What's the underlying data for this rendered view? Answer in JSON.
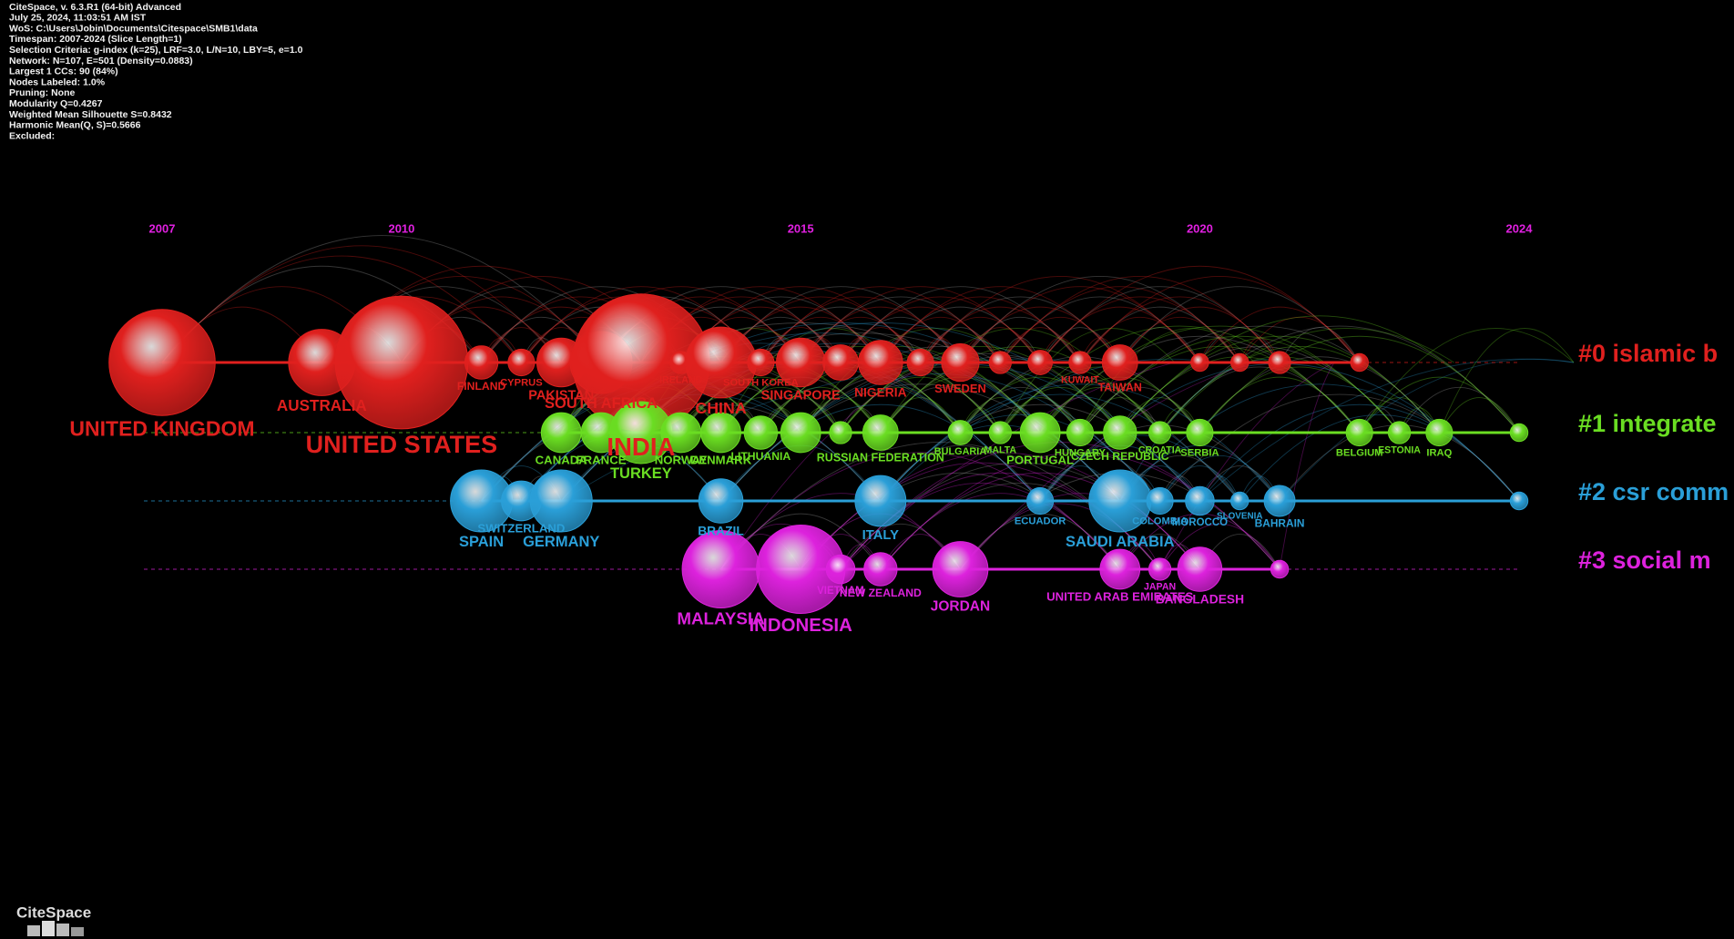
{
  "chart_data": {
    "type": "timeline",
    "info": [
      "CiteSpace, v. 6.3.R1 (64-bit) Advanced",
      "July 25, 2024, 11:03:51 AM IST",
      "WoS: C:\\Users\\Jobin\\Documents\\Citespace\\SMB1\\data",
      "Timespan: 2007-2024 (Slice Length=1)",
      "Selection Criteria: g-index (k=25), LRF=3.0, L/N=10, LBY=5, e=1.0",
      "Network: N=107, E=501 (Density=0.0883)",
      "Largest 1 CCs: 90 (84%)",
      "Nodes Labeled: 1.0%",
      "Pruning: None",
      "Modularity Q=0.4267",
      "Weighted Mean Silhouette S=0.8432",
      "Harmonic Mean(Q, S)=0.5666",
      "Excluded:"
    ],
    "logo": "CiteSpace",
    "xlim": [
      2007,
      2024
    ],
    "xticks": [
      2007,
      2010,
      2015,
      2020,
      2024
    ],
    "series": [
      {
        "name": "#0 islamic b",
        "color": "#e0201e",
        "labels": [
          "UNITED KINGDOM",
          "AUSTRALIA",
          "UNITED STATES",
          "FINLAND",
          "CYPRUS",
          "PAKISTAN",
          "SOUTH AFRICA",
          "INDIA",
          "IRELAND",
          "CHINA",
          "SOUTH KOREA",
          "SINGAPORE",
          null,
          "NIGERIA",
          null,
          "SWEDEN",
          null,
          null,
          "KUWAIT",
          "TAIWAN",
          null,
          null,
          null,
          null
        ],
        "x": [
          2007,
          2009,
          2010,
          2011,
          2011.5,
          2012,
          2012.5,
          2013,
          2013.5,
          2014,
          2014.5,
          2015,
          2015.5,
          2016,
          2016.5,
          2017,
          2017.5,
          2018,
          2018.5,
          2019,
          2020,
          2020.5,
          2021,
          2022
        ],
        "values": [
          48,
          30,
          60,
          15,
          12,
          22,
          28,
          62,
          10,
          32,
          12,
          22,
          16,
          20,
          12,
          17,
          10,
          11,
          10,
          16,
          8,
          8,
          10,
          8
        ]
      },
      {
        "name": "#1 integrate",
        "color": "#6add22",
        "labels": [
          "CANADA",
          "FRANCE",
          "TURKEY",
          "NORWAY",
          "DENMARK",
          "LITHUANIA",
          null,
          null,
          "RUSSIAN FEDERATION",
          "BULGARIA",
          "MALTA",
          "PORTUGAL",
          "HUNGARY",
          "CZECH REPUBLIC",
          "CROATIA",
          "SERBIA",
          "BELGIUM",
          "ESTONIA",
          "IRAQ",
          null
        ],
        "x": [
          2012,
          2012.5,
          2013,
          2013.5,
          2014,
          2014.5,
          2015,
          2015.5,
          2016,
          2017,
          2017.5,
          2018,
          2018.5,
          2019,
          2019.5,
          2020,
          2022,
          2022.5,
          2023,
          2024
        ],
        "values": [
          18,
          18,
          28,
          18,
          18,
          15,
          18,
          10,
          16,
          11,
          10,
          18,
          12,
          15,
          10,
          12,
          12,
          10,
          12,
          8
        ]
      },
      {
        "name": "#2 csr comm",
        "color": "#2a9fd8",
        "labels": [
          "SPAIN",
          "SWITZERLAND",
          "GERMANY",
          "BRAZIL",
          "ITALY",
          "ECUADOR",
          "SAUDI ARABIA",
          "COLOMBIA",
          "MOROCCO",
          "SLOVENIA",
          "BAHRAIN",
          null
        ],
        "x": [
          2011,
          2011.5,
          2012,
          2014,
          2016,
          2018,
          2019,
          2019.5,
          2020,
          2020.5,
          2021,
          2024
        ],
        "values": [
          28,
          18,
          28,
          20,
          23,
          12,
          28,
          12,
          13,
          8,
          14,
          8
        ]
      },
      {
        "name": "#3 social m",
        "color": "#dd22dd",
        "labels": [
          "MALAYSIA",
          "INDONESIA",
          "VIETNAM",
          "NEW ZEALAND",
          "JORDAN",
          "UNITED ARAB EMIRATES",
          "JAPAN",
          "BANGLADESH",
          null
        ],
        "x": [
          2014,
          2015,
          2015.5,
          2016,
          2017,
          2019,
          2019.5,
          2020,
          2021
        ],
        "values": [
          35,
          40,
          13,
          15,
          25,
          18,
          10,
          20,
          8
        ]
      }
    ]
  }
}
